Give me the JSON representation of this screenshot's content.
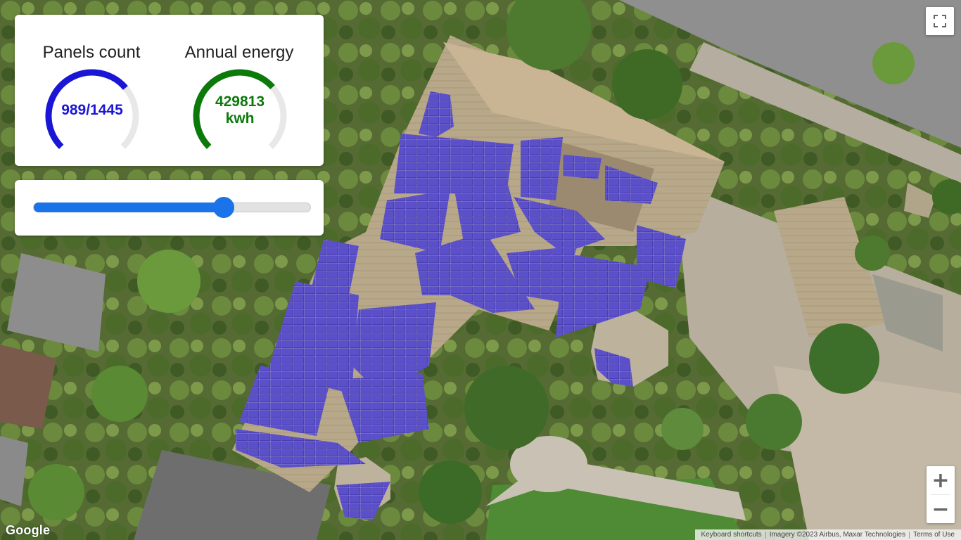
{
  "stats": {
    "panels": {
      "title": "Panels count",
      "value_text": "989/1445",
      "used": 989,
      "total": 1445,
      "color": "#1a16d6"
    },
    "energy": {
      "title": "Annual energy",
      "value": "429813",
      "unit": "kwh",
      "fraction": 0.68,
      "color": "#0b7a0b"
    }
  },
  "slider": {
    "value": 989,
    "min": 0,
    "max": 1445,
    "color": "#1a73e8"
  },
  "map": {
    "fullscreen_icon": "fullscreen-icon",
    "zoom_in_label": "+",
    "zoom_out_label": "−",
    "logo": "Google",
    "attribution": {
      "shortcuts": "Keyboard shortcuts",
      "imagery": "Imagery ©2023 Airbus, Maxar Technologies",
      "terms": "Terms of Use"
    }
  }
}
